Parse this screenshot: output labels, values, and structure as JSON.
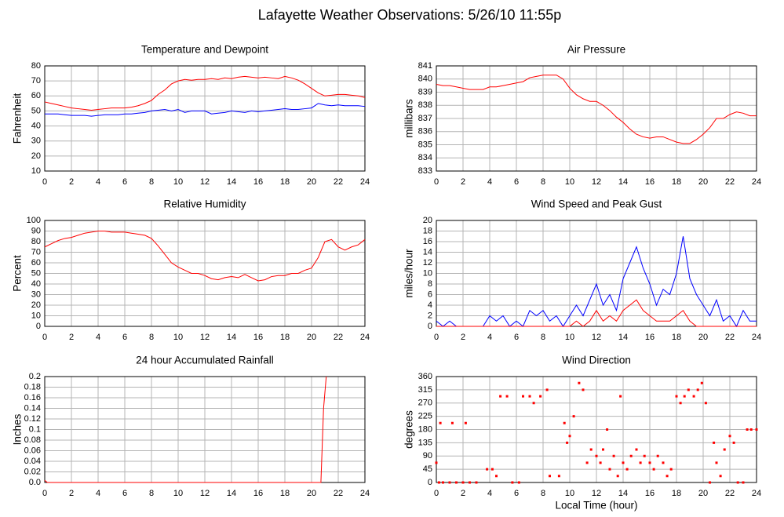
{
  "title": "Lafayette Weather Observations: 5/26/10 11:55p",
  "chart_data": [
    {
      "type": "line",
      "title": "Temperature and Dewpoint",
      "ylabel": "Fahrenheit",
      "xlim": [
        0,
        24
      ],
      "xticks": [
        0,
        2,
        4,
        6,
        8,
        10,
        12,
        14,
        16,
        18,
        20,
        22,
        24
      ],
      "ylim": [
        10,
        80
      ],
      "yticks": [
        10,
        20,
        30,
        40,
        50,
        60,
        70,
        80
      ],
      "grid": true,
      "x": [
        0,
        0.5,
        1,
        1.5,
        2,
        2.5,
        3,
        3.5,
        4,
        4.5,
        5,
        5.5,
        6,
        6.5,
        7,
        7.5,
        8,
        8.5,
        9,
        9.5,
        10,
        10.5,
        11,
        11.5,
        12,
        12.5,
        13,
        13.5,
        14,
        14.5,
        15,
        15.5,
        16,
        16.5,
        17,
        17.5,
        18,
        18.5,
        19,
        19.5,
        20,
        20.5,
        21,
        21.5,
        22,
        22.5,
        23,
        23.5,
        24
      ],
      "series": [
        {
          "color": "#ff0000",
          "values": [
            56,
            55,
            54,
            53,
            52,
            51.5,
            51,
            50.5,
            51,
            51.5,
            52,
            52,
            52,
            52.5,
            53.5,
            55,
            57,
            61,
            64,
            68,
            70,
            71,
            70.5,
            71,
            71,
            71.5,
            71,
            72,
            71.5,
            72.5,
            73,
            72.5,
            72,
            72.5,
            72,
            71.5,
            73,
            72,
            70.5,
            68,
            65,
            62,
            60,
            60.5,
            61,
            61,
            60.5,
            60,
            59
          ]
        },
        {
          "color": "#0000ff",
          "values": [
            48,
            48,
            48,
            47.5,
            47,
            47,
            47,
            46.5,
            47,
            47.5,
            47.5,
            47.5,
            48,
            48,
            48.5,
            49,
            50,
            50.5,
            51,
            50,
            51,
            49,
            50,
            50,
            50,
            48,
            48.5,
            49,
            50,
            49.5,
            49,
            50,
            49.5,
            50,
            50.5,
            51,
            51.5,
            51,
            51,
            51.5,
            52,
            55,
            54,
            53.5,
            54,
            53.5,
            53.5,
            53.5,
            53
          ]
        }
      ]
    },
    {
      "type": "line",
      "title": "Air Pressure",
      "ylabel": "millibars",
      "xlim": [
        0,
        24
      ],
      "xticks": [
        0,
        2,
        4,
        6,
        8,
        10,
        12,
        14,
        16,
        18,
        20,
        22,
        24
      ],
      "ylim": [
        833,
        841
      ],
      "yticks": [
        833,
        834,
        835,
        836,
        837,
        838,
        839,
        840,
        841
      ],
      "grid": true,
      "x": [
        0,
        0.5,
        1,
        1.5,
        2,
        2.5,
        3,
        3.5,
        4,
        4.5,
        5,
        5.5,
        6,
        6.5,
        7,
        7.5,
        8,
        8.5,
        9,
        9.5,
        10,
        10.5,
        11,
        11.5,
        12,
        12.5,
        13,
        13.5,
        14,
        14.5,
        15,
        15.5,
        16,
        16.5,
        17,
        17.5,
        18,
        18.5,
        19,
        19.5,
        20,
        20.5,
        21,
        21.5,
        22,
        22.5,
        23,
        23.5,
        24
      ],
      "series": [
        {
          "color": "#ff0000",
          "values": [
            839.6,
            839.5,
            839.5,
            839.4,
            839.3,
            839.2,
            839.2,
            839.2,
            839.4,
            839.4,
            839.5,
            839.6,
            839.7,
            839.8,
            840.1,
            840.2,
            840.3,
            840.3,
            840.3,
            840.0,
            839.3,
            838.8,
            838.5,
            838.3,
            838.3,
            838.0,
            837.6,
            837.1,
            836.7,
            836.2,
            835.8,
            835.6,
            835.5,
            835.6,
            835.6,
            835.4,
            835.2,
            835.1,
            835.1,
            835.4,
            835.8,
            836.3,
            837.0,
            837.0,
            837.3,
            837.5,
            837.4,
            837.2,
            837.2
          ]
        }
      ]
    },
    {
      "type": "line",
      "title": "Relative Humidity",
      "ylabel": "Percent",
      "xlim": [
        0,
        24
      ],
      "xticks": [
        0,
        2,
        4,
        6,
        8,
        10,
        12,
        14,
        16,
        18,
        20,
        22,
        24
      ],
      "ylim": [
        0,
        100
      ],
      "yticks": [
        0,
        10,
        20,
        30,
        40,
        50,
        60,
        70,
        80,
        90,
        100
      ],
      "grid": true,
      "x": [
        0,
        0.5,
        1,
        1.5,
        2,
        2.5,
        3,
        3.5,
        4,
        4.5,
        5,
        5.5,
        6,
        6.5,
        7,
        7.5,
        8,
        8.5,
        9,
        9.5,
        10,
        10.5,
        11,
        11.5,
        12,
        12.5,
        13,
        13.5,
        14,
        14.5,
        15,
        15.5,
        16,
        16.5,
        17,
        17.5,
        18,
        18.5,
        19,
        19.5,
        20,
        20.5,
        21,
        21.5,
        22,
        22.5,
        23,
        23.5,
        24
      ],
      "series": [
        {
          "color": "#ff0000",
          "values": [
            75,
            78,
            81,
            83,
            84,
            86,
            88,
            89,
            90,
            90,
            89,
            89,
            89,
            88,
            87,
            86,
            83,
            76,
            68,
            60,
            56,
            53,
            50,
            50,
            48,
            45,
            44,
            46,
            47,
            46,
            49,
            46,
            43,
            44,
            47,
            48,
            48,
            50,
            50,
            53,
            55,
            65,
            80,
            82,
            75,
            72,
            75,
            77,
            82
          ]
        }
      ]
    },
    {
      "type": "line",
      "title": "Wind Speed and Peak Gust",
      "ylabel": "miles/hour",
      "xlim": [
        0,
        24
      ],
      "xticks": [
        0,
        2,
        4,
        6,
        8,
        10,
        12,
        14,
        16,
        18,
        20,
        22,
        24
      ],
      "ylim": [
        0,
        20
      ],
      "yticks": [
        0,
        2,
        4,
        6,
        8,
        10,
        12,
        14,
        16,
        18,
        20
      ],
      "grid": true,
      "x": [
        0,
        0.5,
        1,
        1.5,
        2,
        2.5,
        3,
        3.5,
        4,
        4.5,
        5,
        5.5,
        6,
        6.5,
        7,
        7.5,
        8,
        8.5,
        9,
        9.5,
        10,
        10.5,
        11,
        11.5,
        12,
        12.5,
        13,
        13.5,
        14,
        14.5,
        15,
        15.5,
        16,
        16.5,
        17,
        17.5,
        18,
        18.5,
        19,
        19.5,
        20,
        20.5,
        21,
        21.5,
        22,
        22.5,
        23,
        23.5,
        24
      ],
      "series": [
        {
          "color": "#0000ff",
          "values": [
            1,
            0,
            1,
            0,
            0,
            0,
            0,
            0,
            2,
            1,
            2,
            0,
            1,
            0,
            3,
            2,
            3,
            1,
            2,
            0,
            2,
            4,
            2,
            5,
            8,
            4,
            6,
            3,
            9,
            12,
            15,
            11,
            8,
            4,
            7,
            6,
            10,
            17,
            9,
            6,
            4,
            2,
            5,
            1,
            2,
            0,
            3,
            1,
            1
          ]
        },
        {
          "color": "#ff0000",
          "values": [
            0,
            0,
            0,
            0,
            0,
            0,
            0,
            0,
            0,
            0,
            0,
            0,
            0,
            0,
            0,
            0,
            0,
            0,
            0,
            0,
            0,
            1,
            0,
            1,
            3,
            1,
            2,
            1,
            3,
            4,
            5,
            3,
            2,
            1,
            1,
            1,
            2,
            3,
            1,
            0,
            0,
            0,
            0,
            0,
            0,
            0,
            0,
            0,
            0
          ]
        }
      ]
    },
    {
      "type": "line",
      "title": "24 hour Accumulated Rainfall",
      "ylabel": "Inches",
      "xlim": [
        0,
        24
      ],
      "xticks": [
        0,
        2,
        4,
        6,
        8,
        10,
        12,
        14,
        16,
        18,
        20,
        22,
        24
      ],
      "ylim": [
        0,
        0.2
      ],
      "yticks": [
        {
          "value": 0,
          "label": "0.0"
        },
        0.02,
        0.04,
        0.06,
        0.08,
        0.1,
        0.12,
        0.14,
        0.16,
        0.18,
        0.2
      ],
      "grid": true,
      "x": [
        0,
        0.2,
        20.7,
        20.9,
        21.1
      ],
      "series": [
        {
          "color": "#ff0000",
          "values": [
            0.004,
            0,
            0,
            0.14,
            0.2
          ]
        }
      ]
    },
    {
      "type": "scatter",
      "title": "Wind Direction",
      "ylabel": "degrees",
      "xlabel": "Local Time (hour)",
      "xlim": [
        0,
        24
      ],
      "xticks": [
        0,
        2,
        4,
        6,
        8,
        10,
        12,
        14,
        16,
        18,
        20,
        22,
        24
      ],
      "ylim": [
        0,
        360
      ],
      "yticks": [
        0,
        45,
        90,
        135,
        180,
        225,
        270,
        315,
        360
      ],
      "grid": true,
      "color": "#ff0000",
      "x": [
        0,
        0.2,
        0.5,
        1,
        1.5,
        2,
        2.5,
        3,
        0.3,
        1.2,
        2.2,
        3.8,
        4.2,
        4.5,
        4.8,
        5.3,
        5.7,
        6.2,
        6.5,
        7,
        7.3,
        7.8,
        8.3,
        8.5,
        9.2,
        9.6,
        9.8,
        10,
        10.3,
        10.7,
        11,
        11.3,
        11.6,
        12,
        12.3,
        12.5,
        12.8,
        13,
        13.3,
        13.6,
        13.8,
        14,
        14.3,
        14.6,
        15,
        15.3,
        15.6,
        16,
        16.3,
        16.6,
        17,
        17.3,
        17.6,
        18,
        18.3,
        18.6,
        18.9,
        19.3,
        19.6,
        19.9,
        20.2,
        20.5,
        20.8,
        21,
        21.3,
        21.6,
        22,
        22.3,
        22.6,
        23,
        23.3,
        23.6,
        24
      ],
      "values": [
        67,
        0,
        0,
        0,
        0,
        0,
        0,
        0,
        202,
        202,
        202,
        45,
        45,
        22,
        293,
        293,
        0,
        0,
        293,
        293,
        270,
        293,
        315,
        22,
        22,
        202,
        135,
        158,
        225,
        338,
        315,
        67,
        112,
        90,
        67,
        112,
        180,
        45,
        90,
        22,
        293,
        67,
        45,
        90,
        112,
        67,
        90,
        67,
        45,
        90,
        67,
        22,
        45,
        293,
        270,
        293,
        315,
        293,
        315,
        338,
        270,
        0,
        135,
        67,
        22,
        112,
        158,
        135,
        0,
        0,
        180,
        180,
        180
      ]
    }
  ]
}
